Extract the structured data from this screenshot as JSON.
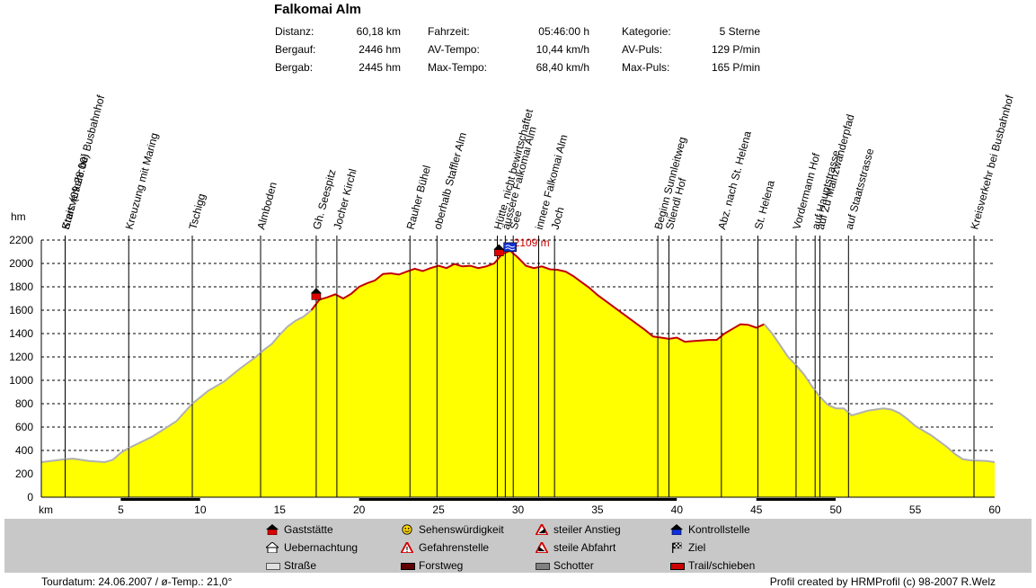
{
  "header": {
    "title": "Falkomai Alm",
    "stats": [
      {
        "label": "Distanz:",
        "value": "60,18 km"
      },
      {
        "label": "Bergauf:",
        "value": "2446 hm"
      },
      {
        "label": "Bergab:",
        "value": "2445 hm"
      },
      {
        "label": "Fahrzeit:",
        "value": "05:46:00 h"
      },
      {
        "label": "AV-Tempo:",
        "value": "10,44 km/h"
      },
      {
        "label": "Max-Tempo:",
        "value": "68,40 km/h"
      },
      {
        "label": "Kategorie:",
        "value": "5 Sterne"
      },
      {
        "label": "AV-Puls:",
        "value": "129 P/min"
      },
      {
        "label": "Max-Puls:",
        "value": "165 P/min"
      }
    ]
  },
  "chart_data": {
    "type": "area",
    "ylabel": "hm",
    "xlabel": "km",
    "xlim": [
      0,
      60
    ],
    "ylim": [
      0,
      2200
    ],
    "yticks": [
      0,
      200,
      400,
      600,
      800,
      1000,
      1200,
      1400,
      1600,
      1800,
      2000,
      2200
    ],
    "xticks": [
      5,
      10,
      15,
      20,
      25,
      30,
      35,
      40,
      45,
      50,
      55,
      60
    ],
    "x_start_label": "km",
    "grid": true,
    "fill_color": "#ffff00",
    "max_label": "2109 m",
    "max_point": {
      "x": 29.5,
      "y": 2109
    },
    "profile": [
      [
        0,
        300
      ],
      [
        1.5,
        325
      ],
      [
        2,
        330
      ],
      [
        3,
        310
      ],
      [
        4,
        300
      ],
      [
        4.5,
        320
      ],
      [
        5,
        380
      ],
      [
        5.5,
        420
      ],
      [
        7,
        520
      ],
      [
        8.5,
        650
      ],
      [
        9.5,
        800
      ],
      [
        10.5,
        910
      ],
      [
        11.5,
        990
      ],
      [
        12.5,
        1100
      ],
      [
        13.5,
        1200
      ],
      [
        14,
        1260
      ],
      [
        14.5,
        1310
      ],
      [
        15,
        1390
      ],
      [
        15.5,
        1460
      ],
      [
        16,
        1510
      ],
      [
        16.5,
        1545
      ],
      [
        17,
        1600
      ],
      [
        17.5,
        1690
      ],
      [
        18,
        1710
      ],
      [
        18.5,
        1735
      ],
      [
        19,
        1700
      ],
      [
        19.5,
        1740
      ],
      [
        20,
        1800
      ],
      [
        20.5,
        1830
      ],
      [
        21,
        1855
      ],
      [
        21.5,
        1910
      ],
      [
        22,
        1915
      ],
      [
        22.5,
        1905
      ],
      [
        23,
        1930
      ],
      [
        23.5,
        1955
      ],
      [
        24,
        1935
      ],
      [
        24.5,
        1960
      ],
      [
        25,
        1980
      ],
      [
        25.5,
        1960
      ],
      [
        26,
        1995
      ],
      [
        26.5,
        1975
      ],
      [
        27,
        1980
      ],
      [
        27.5,
        1960
      ],
      [
        28,
        1975
      ],
      [
        28.5,
        2000
      ],
      [
        29,
        2080
      ],
      [
        29.5,
        2109
      ],
      [
        30,
        2050
      ],
      [
        30.5,
        1980
      ],
      [
        31,
        1960
      ],
      [
        31.5,
        1975
      ],
      [
        32,
        1950
      ],
      [
        32.5,
        1945
      ],
      [
        33,
        1930
      ],
      [
        33.5,
        1890
      ],
      [
        34,
        1840
      ],
      [
        34.5,
        1790
      ],
      [
        35,
        1730
      ],
      [
        35.5,
        1680
      ],
      [
        36,
        1630
      ],
      [
        36.5,
        1580
      ],
      [
        37,
        1530
      ],
      [
        37.5,
        1480
      ],
      [
        38,
        1430
      ],
      [
        38.5,
        1375
      ],
      [
        39,
        1365
      ],
      [
        39.5,
        1355
      ],
      [
        40,
        1365
      ],
      [
        40.5,
        1330
      ],
      [
        41,
        1335
      ],
      [
        41.5,
        1340
      ],
      [
        42,
        1345
      ],
      [
        42.5,
        1345
      ],
      [
        43,
        1400
      ],
      [
        43.5,
        1440
      ],
      [
        44,
        1480
      ],
      [
        44.5,
        1475
      ],
      [
        45,
        1450
      ],
      [
        45.5,
        1480
      ],
      [
        46,
        1400
      ],
      [
        46.5,
        1300
      ],
      [
        47,
        1200
      ],
      [
        47.5,
        1130
      ],
      [
        48,
        1050
      ],
      [
        48.5,
        950
      ],
      [
        49,
        860
      ],
      [
        49.5,
        790
      ],
      [
        50,
        760
      ],
      [
        50.5,
        760
      ],
      [
        51,
        700
      ],
      [
        51.5,
        720
      ],
      [
        52,
        740
      ],
      [
        52.5,
        750
      ],
      [
        53,
        760
      ],
      [
        53.5,
        750
      ],
      [
        54,
        720
      ],
      [
        54.5,
        670
      ],
      [
        55,
        610
      ],
      [
        56,
        530
      ],
      [
        57,
        430
      ],
      [
        57.5,
        370
      ],
      [
        58,
        325
      ],
      [
        58.5,
        315
      ],
      [
        59.5,
        310
      ],
      [
        60,
        300
      ]
    ],
    "red_segments": [
      [
        17.2,
        45.2
      ]
    ],
    "waypoints": [
      {
        "x": 1.5,
        "label": "Start: (09:28:00)"
      },
      {
        "x": 1.5,
        "label": "Kreisverkehr bei Busbahnhof"
      },
      {
        "x": 5.5,
        "label": "Kreuzung mit Maring"
      },
      {
        "x": 9.5,
        "label": "Tschigg"
      },
      {
        "x": 13.8,
        "label": "Almboden"
      },
      {
        "x": 17.3,
        "label": "Gh. Seespitz"
      },
      {
        "x": 18.6,
        "label": "Jocher Kirchl"
      },
      {
        "x": 23.2,
        "label": "Rauher Bühel"
      },
      {
        "x": 24.9,
        "label": "oberhalb Staffler Alm"
      },
      {
        "x": 28.7,
        "label": "Hütte, nicht bewirtschaftet"
      },
      {
        "x": 29.2,
        "label": "äussere Falkomai Alm"
      },
      {
        "x": 29.7,
        "label": "See"
      },
      {
        "x": 31.3,
        "label": "innere Falkomai Alm"
      },
      {
        "x": 32.3,
        "label": "Joch"
      },
      {
        "x": 38.8,
        "label": "Beginn Sunnleitweg"
      },
      {
        "x": 39.5,
        "label": "Stiendl Hof"
      },
      {
        "x": 42.8,
        "label": "Abz. nach St. Helena"
      },
      {
        "x": 45.1,
        "label": "St. Helena"
      },
      {
        "x": 47.5,
        "label": "Vordermann Hof"
      },
      {
        "x": 48.7,
        "label": "auf Hauptstrasse"
      },
      {
        "x": 49.0,
        "label": "auf Zu Mainzwanderpfad"
      },
      {
        "x": 50.8,
        "label": "auf Staatsstrasse"
      },
      {
        "x": 58.7,
        "label": "Kreisverkehr bei Busbahnhof"
      }
    ],
    "surface_bar": [
      {
        "from": 0,
        "to": 5,
        "kind": "Straße"
      },
      {
        "from": 5,
        "to": 10,
        "kind": "Forstweg"
      },
      {
        "from": 10,
        "to": 20,
        "kind": "Straße"
      },
      {
        "from": 20,
        "to": 40,
        "kind": "Forstweg"
      },
      {
        "from": 40,
        "to": 45,
        "kind": "Straße"
      },
      {
        "from": 45,
        "to": 50,
        "kind": "Forstweg"
      },
      {
        "from": 50,
        "to": 60,
        "kind": "Straße"
      }
    ]
  },
  "legend": [
    {
      "label": "Gaststätte",
      "icon": "house-red-icon"
    },
    {
      "label": "Uebernachtung",
      "icon": "house-bed-icon"
    },
    {
      "label": "Straße",
      "icon": "road-icon",
      "color": "#e0e0e0"
    },
    {
      "label": "Sehenswürdigkeit",
      "icon": "smiley-icon"
    },
    {
      "label": "Gefahrenstelle",
      "icon": "warning-icon"
    },
    {
      "label": "Forstweg",
      "icon": "forest-road-icon",
      "color": "#600000"
    },
    {
      "label": "steiler Anstieg",
      "icon": "steep-climb-icon"
    },
    {
      "label": "steile Abfahrt",
      "icon": "steep-descent-icon"
    },
    {
      "label": "Schotter",
      "icon": "gravel-icon",
      "color": "#808080"
    },
    {
      "label": "Kontrollstelle",
      "icon": "checkpoint-icon"
    },
    {
      "label": "Ziel",
      "icon": "finish-flag-icon"
    },
    {
      "label": "Trail/schieben",
      "icon": "trail-icon",
      "color": "#cc0000"
    }
  ],
  "footer": {
    "left": "Tourdatum: 24.06.2007  /  ø-Temp.: 21,0°",
    "right": "Profil created by HRMProfil (c) 98-2007 R.Welz"
  }
}
